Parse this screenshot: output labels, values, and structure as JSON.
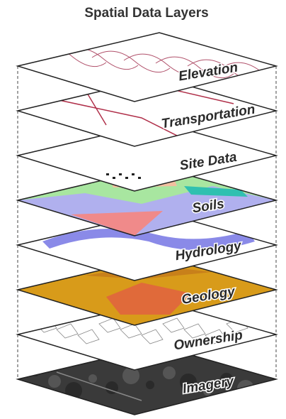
{
  "title": "Spatial Data Layers",
  "layers": [
    {
      "label": "Elevation"
    },
    {
      "label": "Transportation"
    },
    {
      "label": "Site Data"
    },
    {
      "label": "Soils"
    },
    {
      "label": "Hydrology"
    },
    {
      "label": "Geology"
    },
    {
      "label": "Ownership"
    },
    {
      "label": "Imagery"
    }
  ]
}
